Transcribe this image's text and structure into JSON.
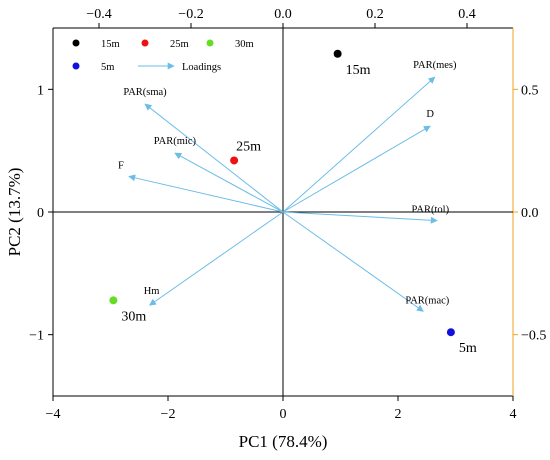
{
  "chart_data": {
    "type": "scatter",
    "title": "",
    "xlabel": "PC1 (78.4%)",
    "ylabel": "PC2 (13.7%)",
    "xlim": [
      -4,
      4
    ],
    "ylim": [
      -1.5,
      1.5
    ],
    "x_ticks": [
      -4,
      -2,
      0,
      2,
      4
    ],
    "y_ticks": [
      -1,
      0,
      1
    ],
    "x_tick_labels": [
      "−4",
      "−2",
      "0",
      "2",
      "4"
    ],
    "y_tick_labels": [
      "−1",
      "0",
      "1"
    ],
    "top_axis": {
      "lim": [
        -0.5,
        0.5
      ],
      "ticks": [
        -0.4,
        -0.2,
        0.0,
        0.2,
        0.4
      ],
      "tick_labels": [
        "−0.4",
        "−0.2",
        "0.0",
        "0.2",
        "0.4"
      ]
    },
    "right_axis": {
      "lim": [
        -0.75,
        0.75
      ],
      "ticks": [
        -0.5,
        0.0,
        0.5
      ],
      "tick_labels": [
        "−0.5",
        "0.0",
        "0.5"
      ],
      "color": "#f0a020"
    },
    "grid": false,
    "reference_lines": {
      "x": 0,
      "y": 0
    },
    "points": [
      {
        "label": "15m",
        "x": 0.95,
        "y": 1.29,
        "color": "#000000"
      },
      {
        "label": "25m",
        "x": -0.85,
        "y": 0.42,
        "color": "#ee1111"
      },
      {
        "label": "30m",
        "x": -2.95,
        "y": -0.72,
        "color": "#66dd22"
      },
      {
        "label": "5m",
        "x": 2.92,
        "y": -0.98,
        "color": "#1111dd"
      }
    ],
    "loadings": [
      {
        "label": "PAR(mes)",
        "x": 0.33,
        "y": 0.55
      },
      {
        "label": "D",
        "x": 0.32,
        "y": 0.35
      },
      {
        "label": "PAR(tol)",
        "x": 0.335,
        "y": -0.035
      },
      {
        "label": "PAR(mac)",
        "x": 0.305,
        "y": -0.405
      },
      {
        "label": "PAR(sma)",
        "x": -0.3,
        "y": 0.44
      },
      {
        "label": "PAR(mic)",
        "x": -0.235,
        "y": 0.24
      },
      {
        "label": "F",
        "x": -0.335,
        "y": 0.145
      },
      {
        "label": "Hm",
        "x": -0.29,
        "y": -0.38
      }
    ],
    "legend": {
      "position": "top-left",
      "entries": [
        {
          "label": "15m",
          "color": "#000000",
          "marker": "dot"
        },
        {
          "label": "25m",
          "color": "#ee1111",
          "marker": "dot"
        },
        {
          "label": "30m",
          "color": "#66dd22",
          "marker": "dot"
        },
        {
          "label": "5m",
          "color": "#1111dd",
          "marker": "dot"
        },
        {
          "label": "Loadings",
          "color": "#6cbde6",
          "marker": "arrow"
        }
      ]
    },
    "arrow_color": "#6cbde6"
  }
}
